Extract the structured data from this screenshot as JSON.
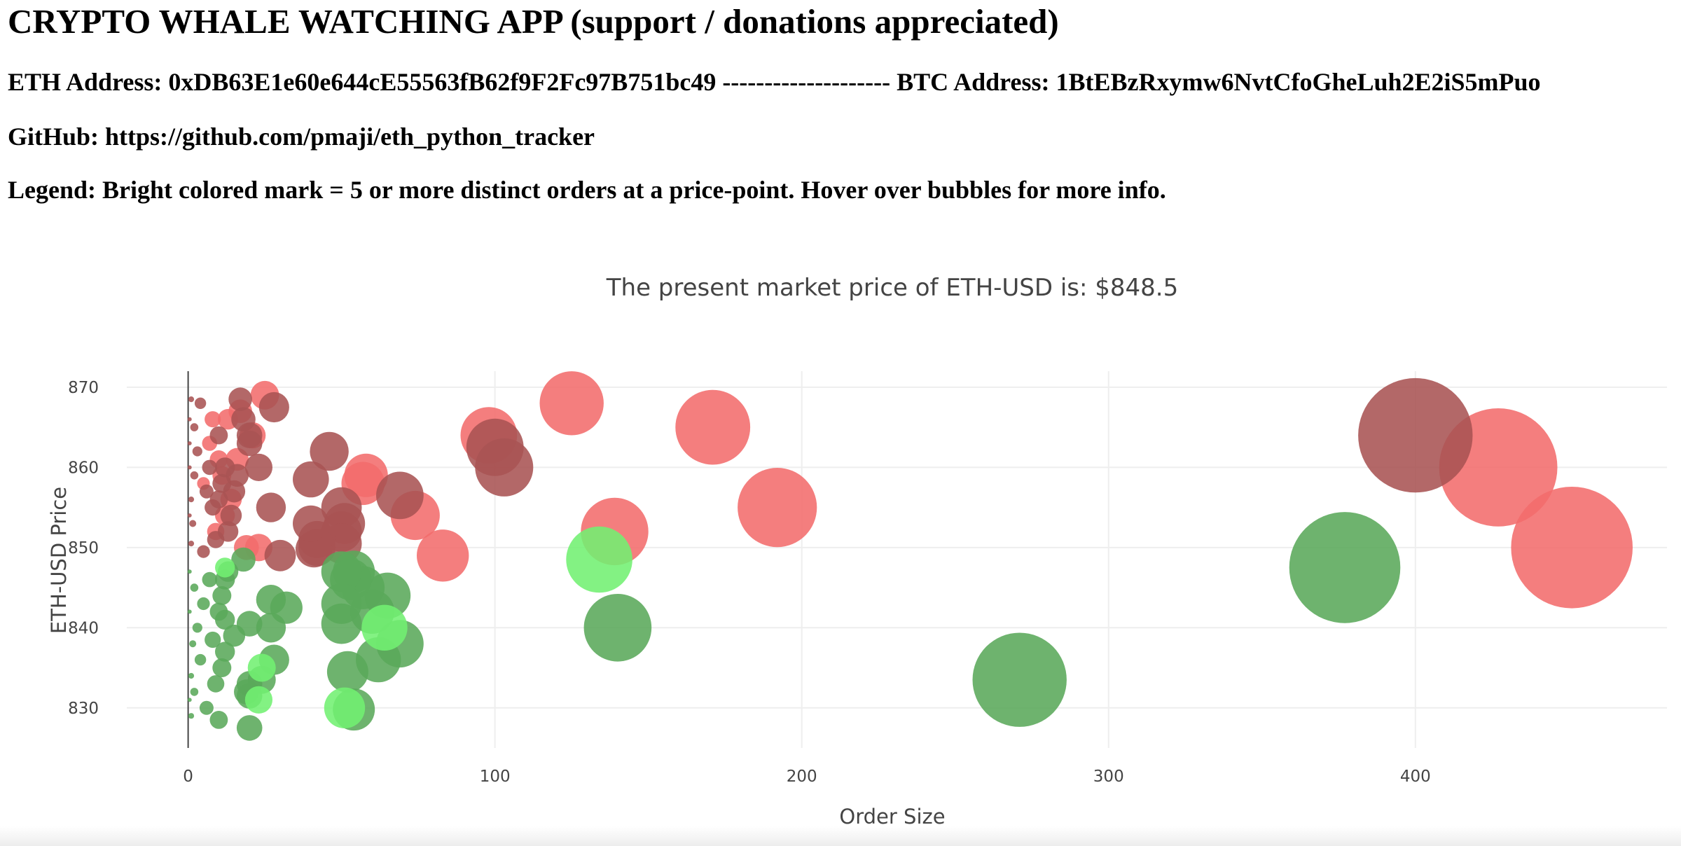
{
  "header": {
    "title": "CRYPTO WHALE WATCHING APP (support / donations appreciated)",
    "address_line": "ETH Address: 0xDB63E1e60e644cE55563fB62f9F2Fc97B751bc49 -------------------- BTC Address: 1BtEBzRxymw6NvtCfoGheLuh2E2iS5mPuo",
    "github_line": "GitHub: https://github.com/pmaji/eth_python_tracker",
    "legend_line": "Legend: Bright colored mark = 5 or more distinct orders at a price-point. Hover over bubbles for more info."
  },
  "chart_data": {
    "type": "scatter",
    "title": "The present market price of ETH-USD is: $848.5",
    "xlabel": "Order Size",
    "ylabel": "ETH-USD Price",
    "xlim": [
      -20,
      482
    ],
    "ylim": [
      825,
      872
    ],
    "xticks": [
      0,
      100,
      200,
      300,
      400
    ],
    "yticks": [
      830,
      840,
      850,
      860,
      870
    ],
    "grid": true,
    "colors": {
      "ask": "#f36c6c",
      "ask_dark": "#a85353",
      "bid": "#5aa85a",
      "bid_bright": "#72f072"
    },
    "series": [
      {
        "role": "ask",
        "color": "#f36c6c",
        "points": [
          {
            "x": 125,
            "y": 868
          },
          {
            "x": 171,
            "y": 865
          },
          {
            "x": 98,
            "y": 864
          },
          {
            "x": 427,
            "y": 860
          },
          {
            "x": 192,
            "y": 855
          },
          {
            "x": 139,
            "y": 852
          },
          {
            "x": 451,
            "y": 850
          },
          {
            "x": 83,
            "y": 849
          },
          {
            "x": 58,
            "y": 859
          },
          {
            "x": 57,
            "y": 858
          },
          {
            "x": 74,
            "y": 854
          },
          {
            "x": 25,
            "y": 869
          },
          {
            "x": 23,
            "y": 850
          },
          {
            "x": 17,
            "y": 867
          },
          {
            "x": 13,
            "y": 866
          },
          {
            "x": 21,
            "y": 864
          },
          {
            "x": 16,
            "y": 861
          },
          {
            "x": 11,
            "y": 859
          },
          {
            "x": 14,
            "y": 856
          },
          {
            "x": 9,
            "y": 852
          },
          {
            "x": 19,
            "y": 850
          },
          {
            "x": 7,
            "y": 863
          },
          {
            "x": 12,
            "y": 854
          },
          {
            "x": 8,
            "y": 866
          },
          {
            "x": 5,
            "y": 858
          },
          {
            "x": 10,
            "y": 861
          }
        ]
      },
      {
        "role": "ask_dark",
        "color": "#a85353",
        "points": [
          {
            "x": 400,
            "y": 864
          },
          {
            "x": 100,
            "y": 862.5
          },
          {
            "x": 103,
            "y": 860
          },
          {
            "x": 69,
            "y": 856.5
          },
          {
            "x": 46,
            "y": 862
          },
          {
            "x": 50,
            "y": 855
          },
          {
            "x": 51,
            "y": 853
          },
          {
            "x": 50,
            "y": 852
          },
          {
            "x": 50,
            "y": 850.5
          },
          {
            "x": 42,
            "y": 851
          },
          {
            "x": 42,
            "y": 850
          },
          {
            "x": 41,
            "y": 849.8
          },
          {
            "x": 40,
            "y": 853
          },
          {
            "x": 40,
            "y": 858.5
          },
          {
            "x": 30,
            "y": 849
          },
          {
            "x": 28,
            "y": 867.5
          },
          {
            "x": 27,
            "y": 855
          },
          {
            "x": 23,
            "y": 860
          },
          {
            "x": 20,
            "y": 864
          },
          {
            "x": 20,
            "y": 863
          },
          {
            "x": 18,
            "y": 866
          },
          {
            "x": 17,
            "y": 868.5
          },
          {
            "x": 16,
            "y": 859
          },
          {
            "x": 15,
            "y": 857
          },
          {
            "x": 14,
            "y": 854
          },
          {
            "x": 13,
            "y": 852
          },
          {
            "x": 12,
            "y": 860
          },
          {
            "x": 11,
            "y": 858
          },
          {
            "x": 10,
            "y": 856
          },
          {
            "x": 10,
            "y": 864
          },
          {
            "x": 9,
            "y": 851
          },
          {
            "x": 8,
            "y": 855
          },
          {
            "x": 7,
            "y": 860
          },
          {
            "x": 6,
            "y": 857
          },
          {
            "x": 5,
            "y": 849.5
          },
          {
            "x": 4,
            "y": 868
          },
          {
            "x": 3,
            "y": 862
          },
          {
            "x": 2,
            "y": 865
          },
          {
            "x": 2,
            "y": 859
          },
          {
            "x": 1.5,
            "y": 853
          },
          {
            "x": 1,
            "y": 868.5
          },
          {
            "x": 1,
            "y": 856
          },
          {
            "x": 1,
            "y": 850.5
          },
          {
            "x": 0.5,
            "y": 863
          },
          {
            "x": 0.5,
            "y": 866
          },
          {
            "x": 0.5,
            "y": 860
          },
          {
            "x": 0.5,
            "y": 854
          }
        ]
      },
      {
        "role": "bid",
        "color": "#5aa85a",
        "points": [
          {
            "x": 377,
            "y": 847.5
          },
          {
            "x": 271,
            "y": 833.5
          },
          {
            "x": 140,
            "y": 840
          },
          {
            "x": 69,
            "y": 838
          },
          {
            "x": 65,
            "y": 844
          },
          {
            "x": 62,
            "y": 836
          },
          {
            "x": 60,
            "y": 842
          },
          {
            "x": 57,
            "y": 845
          },
          {
            "x": 54,
            "y": 847
          },
          {
            "x": 53,
            "y": 846
          },
          {
            "x": 52,
            "y": 834.5
          },
          {
            "x": 50,
            "y": 847
          },
          {
            "x": 50,
            "y": 843
          },
          {
            "x": 50,
            "y": 840.5
          },
          {
            "x": 54,
            "y": 829.8
          },
          {
            "x": 32,
            "y": 842.5
          },
          {
            "x": 28,
            "y": 836
          },
          {
            "x": 27,
            "y": 843.5
          },
          {
            "x": 27,
            "y": 840
          },
          {
            "x": 24,
            "y": 833.5
          },
          {
            "x": 20,
            "y": 840.5
          },
          {
            "x": 20,
            "y": 833
          },
          {
            "x": 20,
            "y": 831.5
          },
          {
            "x": 19,
            "y": 832
          },
          {
            "x": 20,
            "y": 827.5
          },
          {
            "x": 18,
            "y": 848.5
          },
          {
            "x": 15,
            "y": 839
          },
          {
            "x": 13,
            "y": 847
          },
          {
            "x": 12,
            "y": 846
          },
          {
            "x": 12,
            "y": 841
          },
          {
            "x": 12,
            "y": 837
          },
          {
            "x": 11,
            "y": 844
          },
          {
            "x": 11,
            "y": 835
          },
          {
            "x": 10,
            "y": 828.5
          },
          {
            "x": 10,
            "y": 842
          },
          {
            "x": 9,
            "y": 833
          },
          {
            "x": 8,
            "y": 838.5
          },
          {
            "x": 7,
            "y": 846
          },
          {
            "x": 6,
            "y": 830
          },
          {
            "x": 5,
            "y": 843
          },
          {
            "x": 4,
            "y": 836
          },
          {
            "x": 3,
            "y": 840
          },
          {
            "x": 2,
            "y": 845
          },
          {
            "x": 2,
            "y": 832
          },
          {
            "x": 1.5,
            "y": 838
          },
          {
            "x": 1,
            "y": 829
          },
          {
            "x": 1,
            "y": 834
          },
          {
            "x": 0.5,
            "y": 842
          },
          {
            "x": 0.5,
            "y": 847
          },
          {
            "x": 0.5,
            "y": 831
          }
        ]
      },
      {
        "role": "bid_bright",
        "color": "#72f072",
        "points": [
          {
            "x": 134,
            "y": 848.5
          },
          {
            "x": 64,
            "y": 840
          },
          {
            "x": 51,
            "y": 830
          },
          {
            "x": 24,
            "y": 835
          },
          {
            "x": 23,
            "y": 831
          },
          {
            "x": 12,
            "y": 847.5
          }
        ]
      }
    ]
  }
}
